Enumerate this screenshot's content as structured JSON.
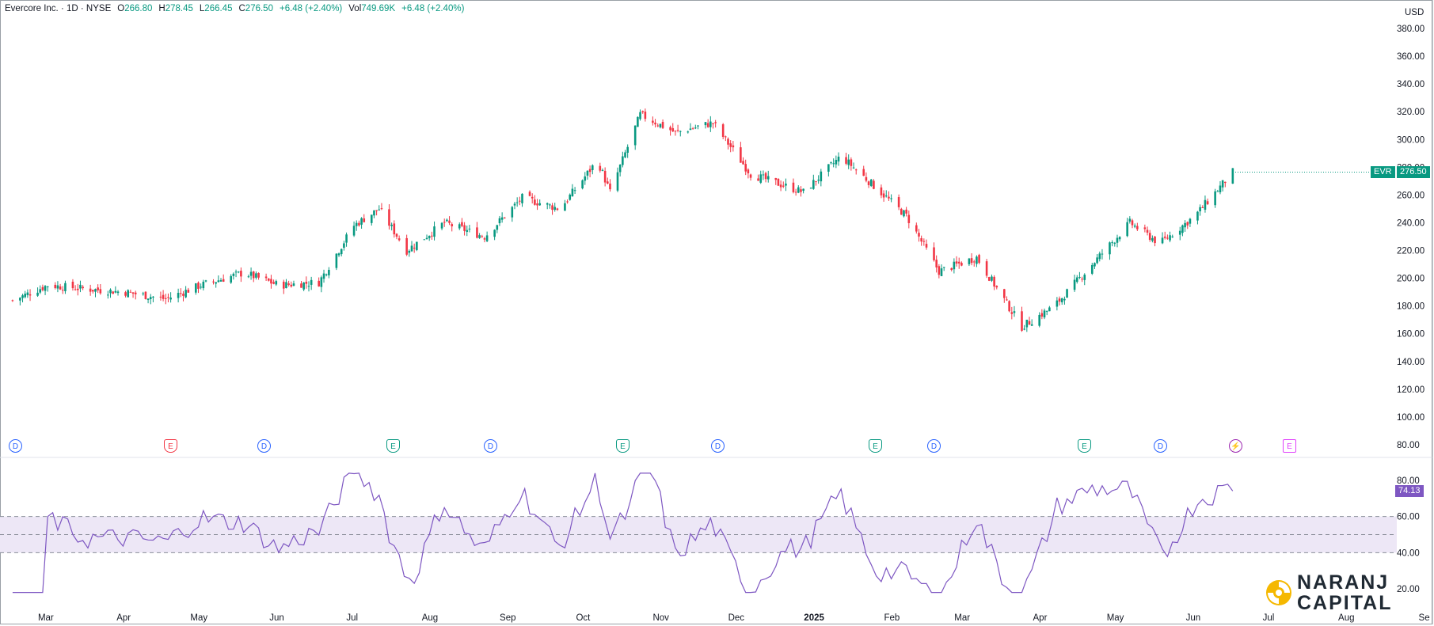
{
  "header": {
    "symbol_name": "Evercore Inc.",
    "interval": "1D",
    "exchange": "NYSE",
    "open_label": "O",
    "open": "266.80",
    "high_label": "H",
    "high": "278.45",
    "low_label": "L",
    "low": "266.45",
    "close_label": "C",
    "close": "276.50",
    "change": "+6.48 (+2.40%)",
    "vol_label": "Vol",
    "volume": "749.69K",
    "vol_change": "+6.48 (+2.40%)"
  },
  "price_axis": {
    "currency": "USD",
    "ticks": [
      "380.00",
      "360.00",
      "340.00",
      "320.00",
      "300.00",
      "280.00",
      "260.00",
      "240.00",
      "220.00",
      "200.00",
      "180.00",
      "160.00",
      "140.00",
      "120.00",
      "100.00",
      "80.00"
    ]
  },
  "last_price": {
    "ticker": "EVR",
    "value": "276.50",
    "color": "#089981"
  },
  "rsi": {
    "ticks": [
      "80.00",
      "60.00",
      "40.00",
      "20.00"
    ],
    "last_value": "74.13",
    "line_color": "#7e57c2",
    "band_color": "#ede7f6"
  },
  "time_axis": [
    "Mar",
    "Apr",
    "May",
    "Jun",
    "Jul",
    "Aug",
    "Sep",
    "Oct",
    "Nov",
    "Dec",
    "2025",
    "Feb",
    "Mar",
    "Apr",
    "May",
    "Jun",
    "Jul",
    "Aug",
    "Se"
  ],
  "events": [
    {
      "type": "div",
      "label": "D"
    },
    {
      "type": "earnneg",
      "label": "E"
    },
    {
      "type": "div",
      "label": "D"
    },
    {
      "type": "earn",
      "label": "E"
    },
    {
      "type": "div",
      "label": "D"
    },
    {
      "type": "earn",
      "label": "E"
    },
    {
      "type": "div",
      "label": "D"
    },
    {
      "type": "earn",
      "label": "E"
    },
    {
      "type": "div",
      "label": "D"
    },
    {
      "type": "earn",
      "label": "E"
    },
    {
      "type": "div",
      "label": "D"
    },
    {
      "type": "split",
      "label": "⚡"
    },
    {
      "type": "earnfut",
      "label": "E"
    }
  ],
  "colors": {
    "up": "#089981",
    "down": "#f23645",
    "text": "#131722"
  },
  "logo": {
    "line1": "NARANJ",
    "line2": "CAPITAL"
  },
  "chart_data": {
    "type": "candlestick",
    "title": "Evercore Inc. · 1D · NYSE",
    "price_range": [
      80,
      380
    ],
    "series_close": [
      {
        "date": "2024-03-01",
        "close": 184
      },
      {
        "date": "2024-03-15",
        "close": 195
      },
      {
        "date": "2024-04-01",
        "close": 192
      },
      {
        "date": "2024-04-15",
        "close": 190
      },
      {
        "date": "2024-05-01",
        "close": 185
      },
      {
        "date": "2024-05-15",
        "close": 195
      },
      {
        "date": "2024-06-01",
        "close": 204
      },
      {
        "date": "2024-06-15",
        "close": 195
      },
      {
        "date": "2024-07-01",
        "close": 197
      },
      {
        "date": "2024-07-15",
        "close": 238
      },
      {
        "date": "2024-07-25",
        "close": 250
      },
      {
        "date": "2024-08-05",
        "close": 220
      },
      {
        "date": "2024-08-20",
        "close": 240
      },
      {
        "date": "2024-09-05",
        "close": 230
      },
      {
        "date": "2024-09-20",
        "close": 258
      },
      {
        "date": "2024-10-05",
        "close": 250
      },
      {
        "date": "2024-10-20",
        "close": 285
      },
      {
        "date": "2024-10-25",
        "close": 262
      },
      {
        "date": "2024-11-06",
        "close": 318
      },
      {
        "date": "2024-11-20",
        "close": 305
      },
      {
        "date": "2024-12-05",
        "close": 312
      },
      {
        "date": "2024-12-20",
        "close": 275
      },
      {
        "date": "2025-01-10",
        "close": 262
      },
      {
        "date": "2025-01-25",
        "close": 288
      },
      {
        "date": "2025-02-05",
        "close": 270
      },
      {
        "date": "2025-02-20",
        "close": 245
      },
      {
        "date": "2025-03-05",
        "close": 205
      },
      {
        "date": "2025-03-20",
        "close": 215
      },
      {
        "date": "2025-04-07",
        "close": 165
      },
      {
        "date": "2025-04-20",
        "close": 180
      },
      {
        "date": "2025-05-05",
        "close": 210
      },
      {
        "date": "2025-05-20",
        "close": 240
      },
      {
        "date": "2025-06-01",
        "close": 225
      },
      {
        "date": "2025-06-15",
        "close": 245
      },
      {
        "date": "2025-06-30",
        "close": 276.5
      }
    ],
    "rsi_range": [
      15,
      85
    ],
    "rsi_overbought": 60,
    "rsi_oversold": 40,
    "rsi_mid": 50,
    "rsi_last": 74.13
  }
}
